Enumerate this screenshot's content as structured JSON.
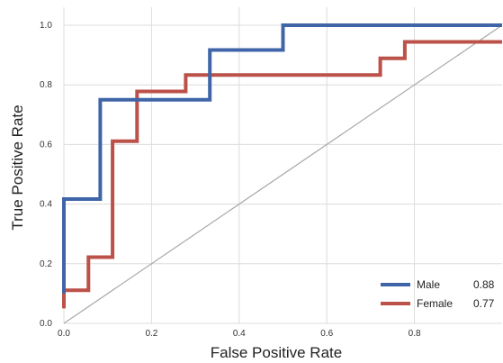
{
  "chart_data": {
    "type": "line",
    "title": "",
    "xlabel": "False Positive Rate",
    "ylabel": "True Positive Rate",
    "xlim": [
      0,
      1
    ],
    "ylim": [
      0,
      1
    ],
    "x_ticks": [
      "0.0",
      "0.2",
      "0.4",
      "0.6",
      "0.8"
    ],
    "y_ticks": [
      "0.0",
      "0.2",
      "0.4",
      "0.6",
      "0.8",
      "1.0"
    ],
    "grid": true,
    "legend_position": "bottom-right",
    "series": [
      {
        "name": "Male",
        "auc": "0.88",
        "color": "#3f65a8",
        "points": [
          [
            0,
            0.1
          ],
          [
            0,
            0.417
          ],
          [
            0.083,
            0.417
          ],
          [
            0.083,
            0.75
          ],
          [
            0.333,
            0.75
          ],
          [
            0.333,
            0.917
          ],
          [
            0.5,
            0.917
          ],
          [
            0.5,
            1.0
          ],
          [
            1.0,
            1.0
          ]
        ]
      },
      {
        "name": "Female",
        "auc": "0.77",
        "color": "#bc5149",
        "points": [
          [
            0,
            0.05
          ],
          [
            0,
            0.111
          ],
          [
            0.056,
            0.111
          ],
          [
            0.056,
            0.222
          ],
          [
            0.111,
            0.222
          ],
          [
            0.111,
            0.611
          ],
          [
            0.167,
            0.611
          ],
          [
            0.167,
            0.778
          ],
          [
            0.278,
            0.778
          ],
          [
            0.278,
            0.833
          ],
          [
            0.722,
            0.833
          ],
          [
            0.722,
            0.889
          ],
          [
            0.778,
            0.889
          ],
          [
            0.778,
            0.944
          ],
          [
            1.0,
            0.944
          ]
        ]
      }
    ],
    "diagonal": {
      "color": "#a8a8a8",
      "points": [
        [
          0,
          0
        ],
        [
          1,
          1
        ]
      ]
    }
  }
}
